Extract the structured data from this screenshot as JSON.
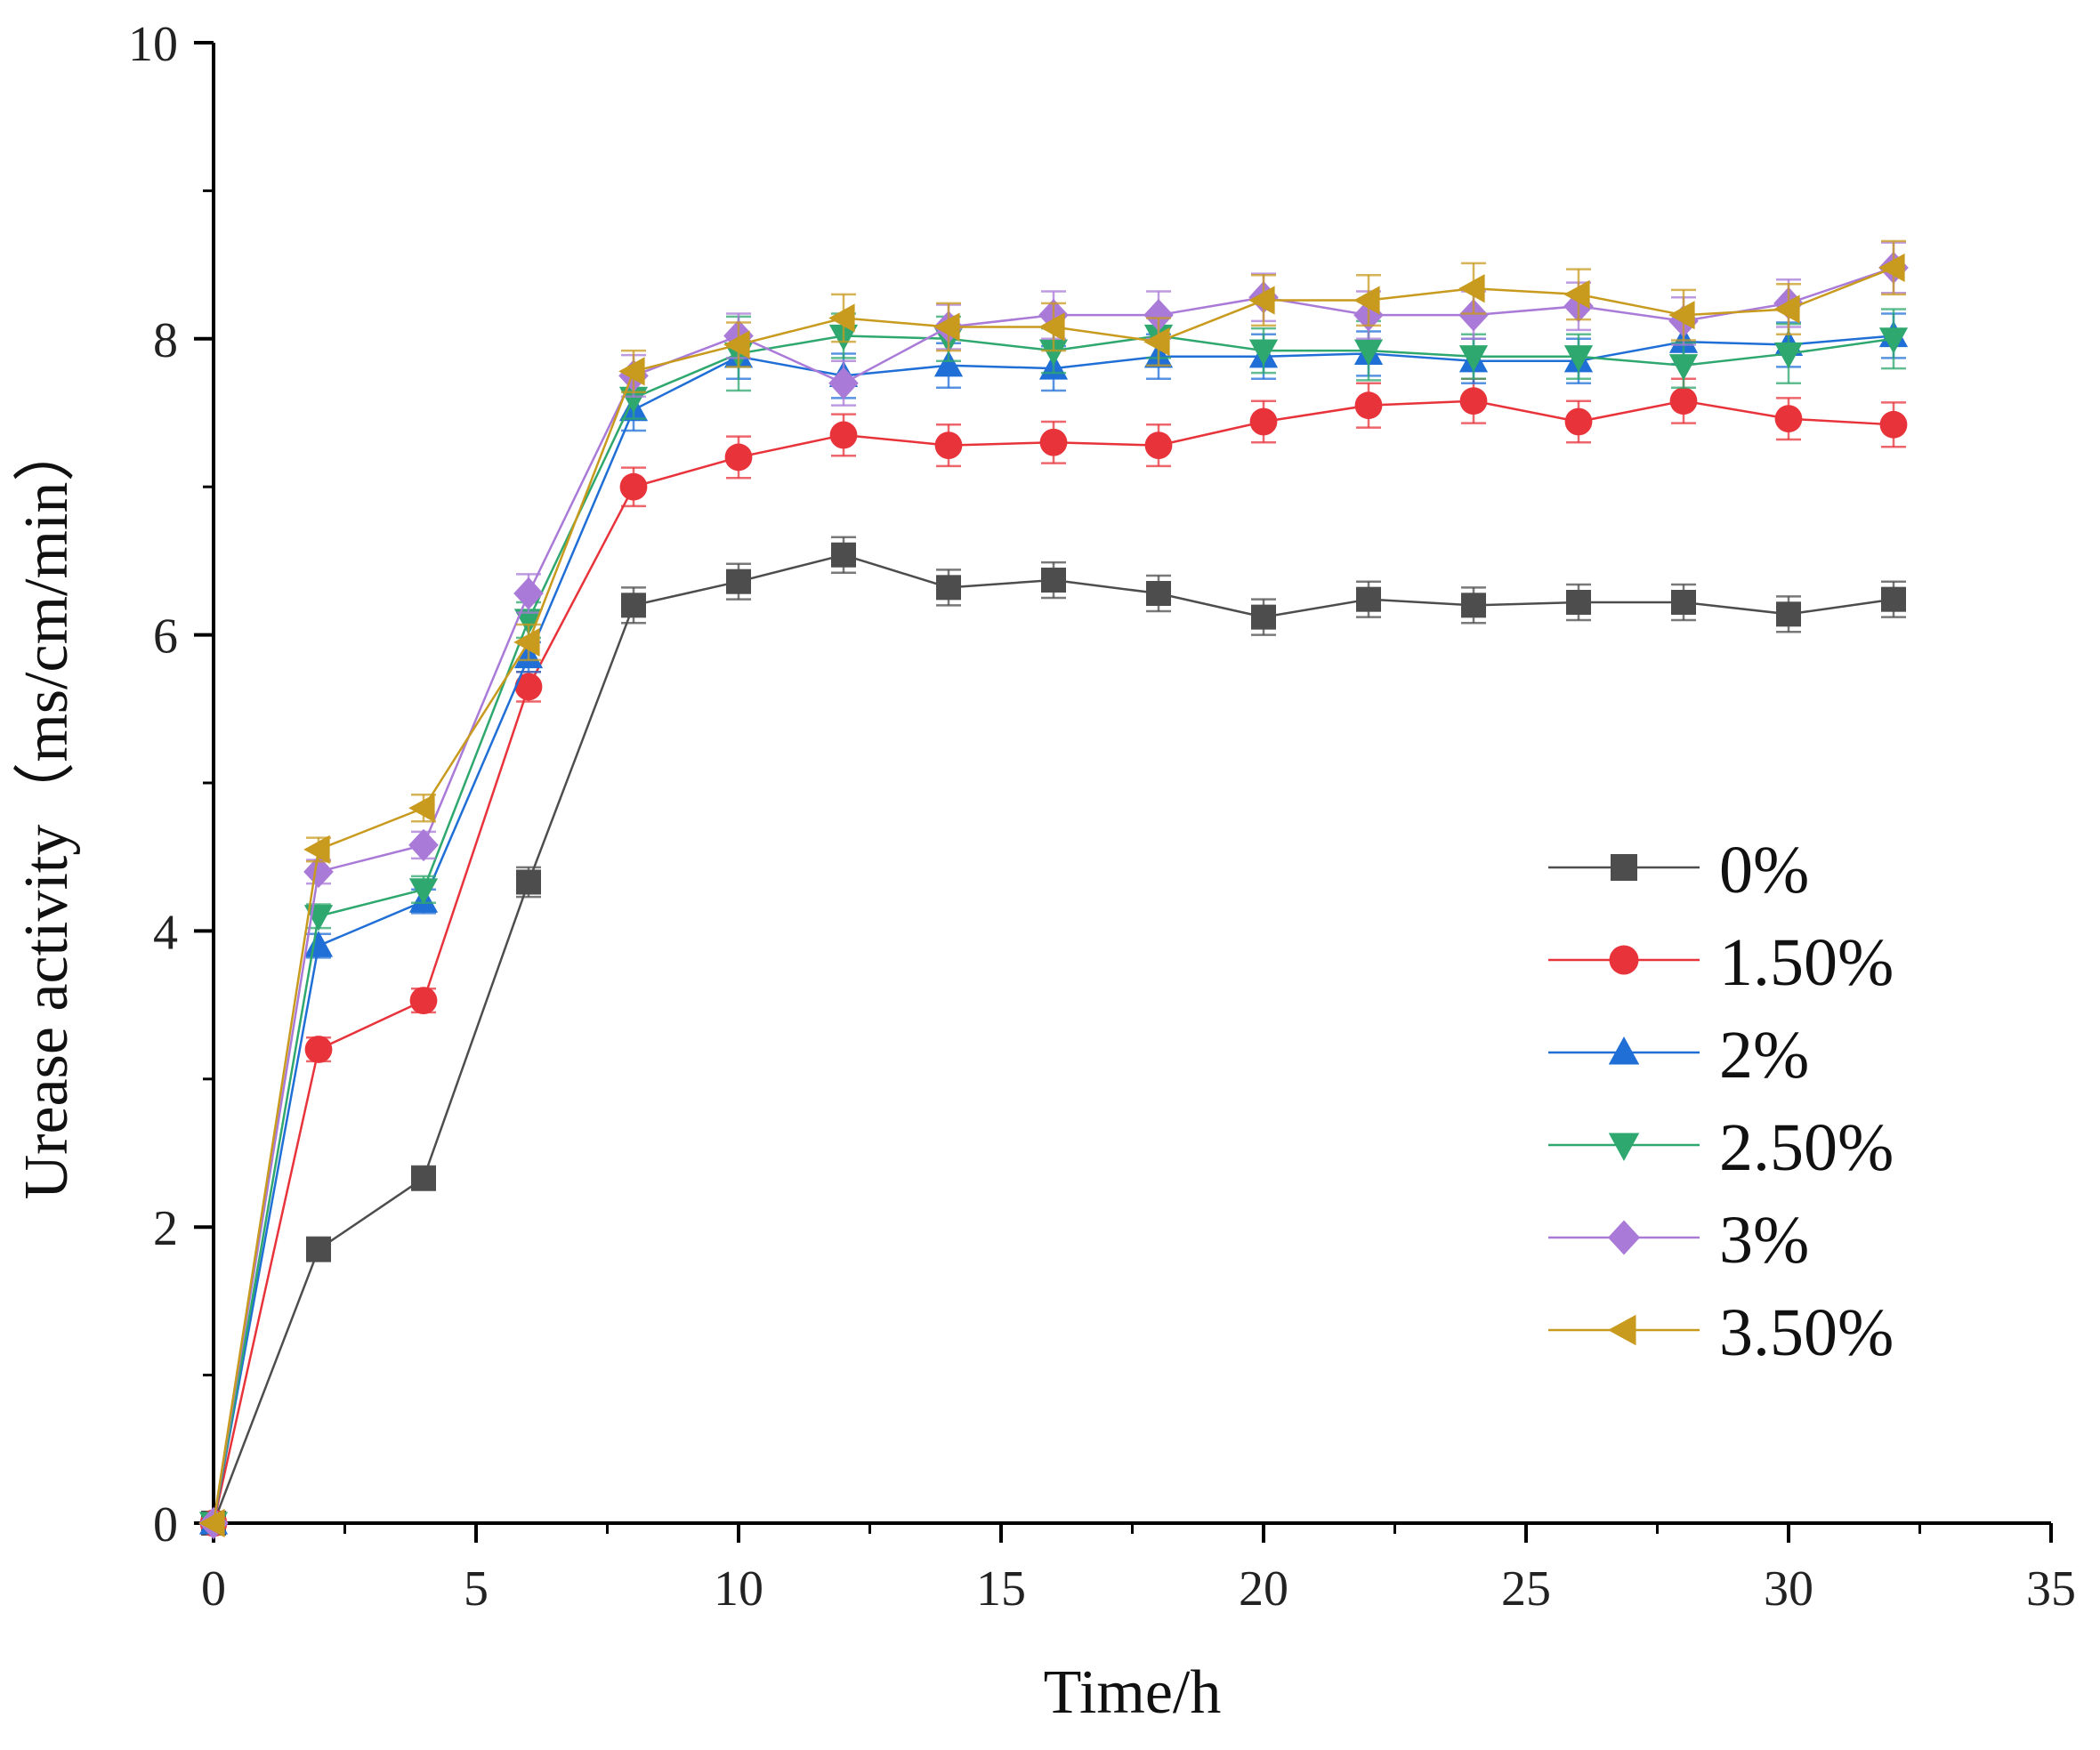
{
  "chart_data": {
    "type": "line",
    "title": "",
    "xlabel": "Time/h",
    "ylabel": "Urease activity（ms/cm/min）",
    "xlim": [
      0,
      35
    ],
    "ylim": [
      0,
      10
    ],
    "x_ticks": [
      0,
      5,
      10,
      15,
      20,
      25,
      30,
      35
    ],
    "y_ticks": [
      0,
      2,
      4,
      6,
      8,
      10
    ],
    "x_tick_labels": [
      "0",
      "5",
      "10",
      "15",
      "20",
      "25",
      "30",
      "35"
    ],
    "y_tick_labels": [
      "0",
      "2",
      "4",
      "6",
      "8",
      "10"
    ],
    "x": [
      0,
      2,
      4,
      6,
      8,
      10,
      12,
      14,
      16,
      18,
      20,
      22,
      24,
      26,
      28,
      30,
      32
    ],
    "grid": false,
    "legend_position": "right-middle",
    "error_bars": true,
    "series": [
      {
        "name": "0%",
        "color": "#4d4d4d",
        "marker": "square",
        "values": [
          0,
          1.85,
          2.33,
          4.33,
          6.2,
          6.36,
          6.54,
          6.32,
          6.37,
          6.28,
          6.12,
          6.24,
          6.2,
          6.22,
          6.22,
          6.14,
          6.24
        ],
        "errors": [
          0,
          0.08,
          0.08,
          0.1,
          0.12,
          0.12,
          0.12,
          0.12,
          0.12,
          0.12,
          0.12,
          0.12,
          0.12,
          0.12,
          0.12,
          0.12,
          0.12
        ]
      },
      {
        "name": "1.50%",
        "color": "#e8333b",
        "marker": "circle",
        "values": [
          0,
          3.2,
          3.53,
          5.65,
          7.0,
          7.2,
          7.35,
          7.28,
          7.3,
          7.28,
          7.44,
          7.55,
          7.58,
          7.44,
          7.58,
          7.46,
          7.42
        ],
        "errors": [
          0,
          0.08,
          0.08,
          0.1,
          0.13,
          0.14,
          0.14,
          0.14,
          0.14,
          0.14,
          0.14,
          0.15,
          0.15,
          0.14,
          0.15,
          0.14,
          0.15
        ]
      },
      {
        "name": "2%",
        "color": "#1f6fd6",
        "marker": "triangle-up",
        "values": [
          0,
          3.9,
          4.2,
          5.85,
          7.52,
          7.88,
          7.75,
          7.82,
          7.8,
          7.88,
          7.88,
          7.9,
          7.85,
          7.85,
          7.98,
          7.96,
          8.02
        ],
        "errors": [
          0,
          0.08,
          0.08,
          0.1,
          0.14,
          0.15,
          0.15,
          0.15,
          0.15,
          0.15,
          0.15,
          0.15,
          0.15,
          0.15,
          0.15,
          0.15,
          0.15
        ]
      },
      {
        "name": "2.50%",
        "color": "#2ea86e",
        "marker": "triangle-down",
        "values": [
          0,
          4.1,
          4.28,
          6.1,
          7.6,
          7.9,
          8.02,
          8.0,
          7.92,
          8.02,
          7.92,
          7.92,
          7.88,
          7.88,
          7.82,
          7.9,
          8.0
        ],
        "errors": [
          0,
          0.08,
          0.09,
          0.12,
          0.14,
          0.25,
          0.15,
          0.15,
          0.15,
          0.15,
          0.15,
          0.2,
          0.15,
          0.15,
          0.15,
          0.2,
          0.2
        ]
      },
      {
        "name": "3%",
        "color": "#a97ad8",
        "marker": "diamond",
        "values": [
          0,
          4.4,
          4.58,
          6.28,
          7.75,
          8.02,
          7.7,
          8.08,
          8.16,
          8.16,
          8.28,
          8.16,
          8.16,
          8.22,
          8.12,
          8.24,
          8.48
        ],
        "errors": [
          0,
          0.08,
          0.09,
          0.13,
          0.14,
          0.15,
          0.15,
          0.15,
          0.16,
          0.16,
          0.16,
          0.16,
          0.16,
          0.16,
          0.16,
          0.16,
          0.17
        ]
      },
      {
        "name": "3.50%",
        "color": "#c89a1e",
        "marker": "triangle-left",
        "values": [
          0,
          4.55,
          4.83,
          5.95,
          7.78,
          7.96,
          8.14,
          8.08,
          8.08,
          7.98,
          8.26,
          8.26,
          8.34,
          8.3,
          8.16,
          8.2,
          8.48
        ],
        "errors": [
          0,
          0.08,
          0.09,
          0.12,
          0.14,
          0.15,
          0.16,
          0.16,
          0.16,
          0.16,
          0.17,
          0.17,
          0.17,
          0.17,
          0.17,
          0.17,
          0.18
        ]
      }
    ]
  }
}
